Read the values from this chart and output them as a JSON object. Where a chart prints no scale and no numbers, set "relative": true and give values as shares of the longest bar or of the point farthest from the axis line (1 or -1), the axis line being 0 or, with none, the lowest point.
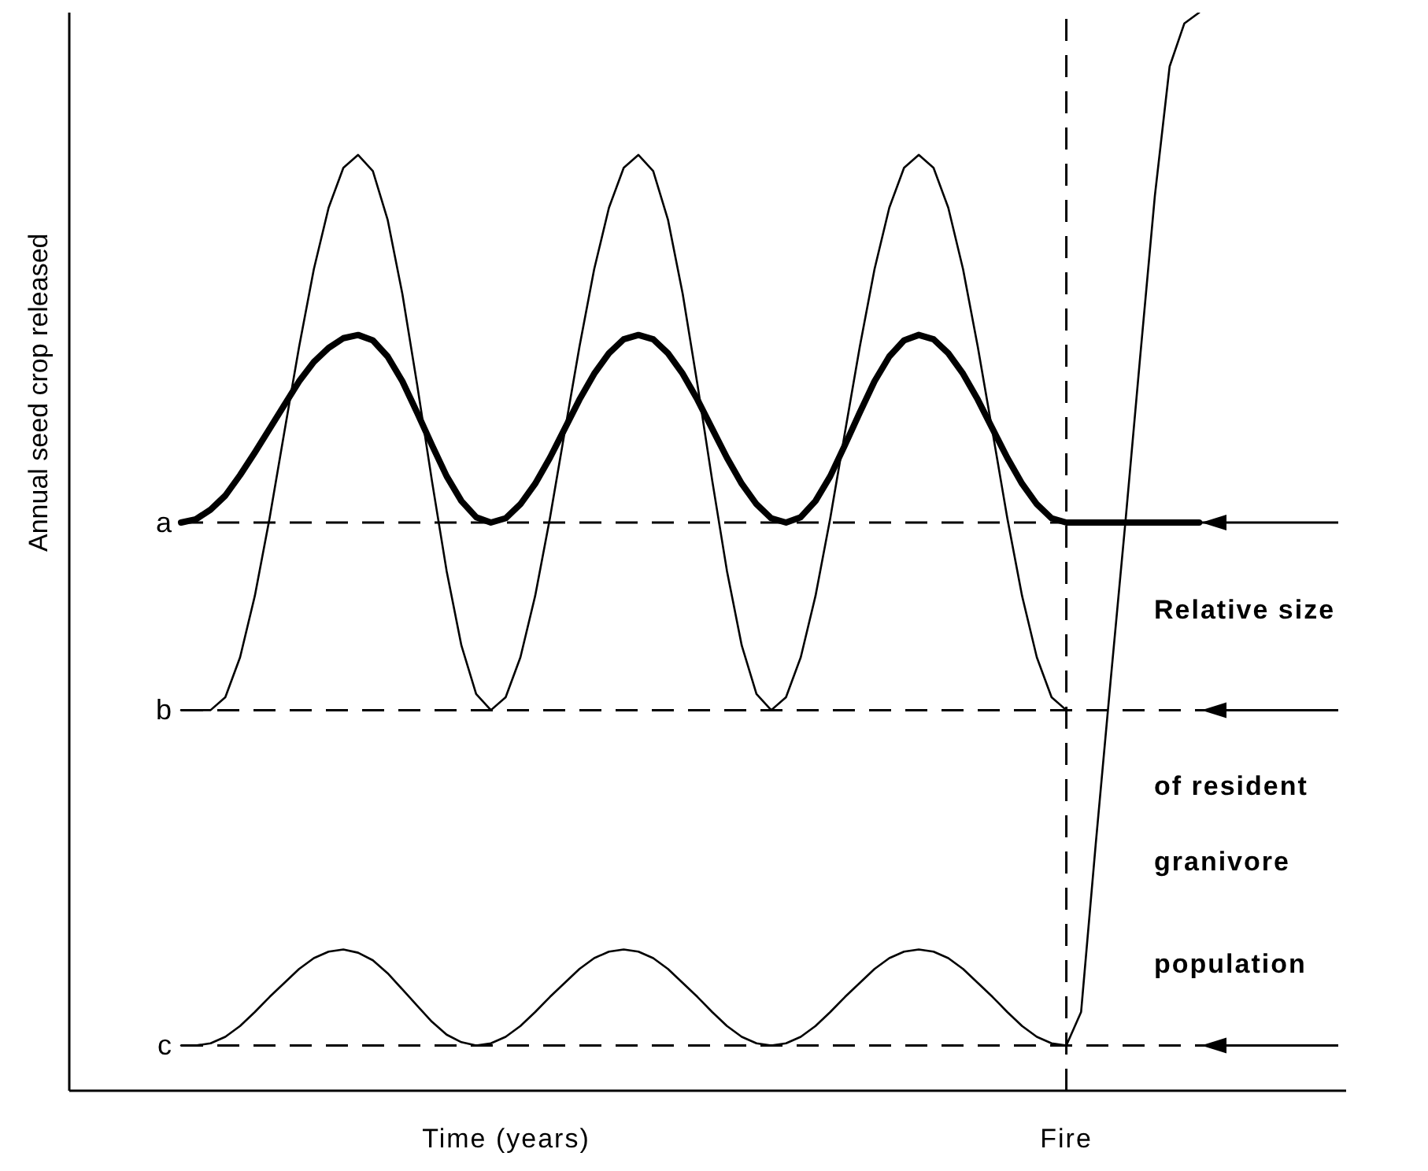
{
  "chart_data": {
    "type": "line",
    "relative": true,
    "ylabel": "Annual seed crop released",
    "xlabel": "Time (years)",
    "categories": [
      null,
      null,
      null,
      null,
      null,
      null,
      null,
      null,
      null,
      null,
      null,
      null,
      null,
      null,
      null,
      null,
      null,
      null,
      null,
      null,
      null,
      null,
      null,
      null,
      null,
      null,
      null,
      null,
      null,
      null,
      null,
      null,
      null,
      null,
      null,
      null,
      null,
      null,
      null,
      null,
      null,
      null,
      null,
      null,
      null,
      null,
      null,
      null,
      null,
      null,
      null,
      null,
      null,
      null,
      null,
      null,
      null,
      null,
      null,
      null,
      null,
      null,
      null,
      null,
      null,
      null,
      null,
      null,
      null,
      null,
      null
    ],
    "marker": "none",
    "line_style": "solid",
    "series": [
      {
        "color": "#000000",
        "values": [
          0.527,
          0.53,
          0.539,
          0.552,
          0.571,
          0.592,
          0.614,
          0.636,
          0.658,
          0.676,
          0.689,
          0.698,
          0.701,
          0.696,
          0.681,
          0.658,
          0.629,
          0.599,
          0.57,
          0.547,
          0.532,
          0.527,
          0.531,
          0.544,
          0.563,
          0.587,
          0.614,
          0.641,
          0.665,
          0.684,
          0.697,
          0.701,
          0.697,
          0.684,
          0.665,
          0.641,
          0.614,
          0.587,
          0.563,
          0.544,
          0.531,
          0.527,
          0.532,
          0.547,
          0.57,
          0.599,
          0.629,
          0.658,
          0.681,
          0.696,
          0.701,
          0.697,
          0.684,
          0.665,
          0.641,
          0.614,
          0.587,
          0.563,
          0.544,
          0.531,
          0.527,
          0.527,
          0.527,
          0.527,
          0.527,
          0.527,
          0.527,
          0.527,
          0.527,
          0.527,
          null
        ]
      },
      {
        "color": "#000000",
        "values": [
          0.353,
          0.353,
          0.353,
          0.365,
          0.402,
          0.459,
          0.531,
          0.611,
          0.69,
          0.762,
          0.819,
          0.856,
          0.868,
          0.853,
          0.808,
          0.739,
          0.655,
          0.566,
          0.482,
          0.413,
          0.368,
          0.353,
          0.365,
          0.402,
          0.459,
          0.531,
          0.611,
          0.69,
          0.762,
          0.819,
          0.856,
          0.868,
          0.853,
          0.808,
          0.739,
          0.655,
          0.566,
          0.482,
          0.413,
          0.368,
          0.353,
          0.365,
          0.402,
          0.459,
          0.531,
          0.611,
          0.69,
          0.762,
          0.819,
          0.856,
          0.868,
          0.856,
          0.819,
          0.762,
          0.69,
          0.611,
          0.531,
          0.459,
          0.402,
          0.365,
          0.353,
          null,
          null,
          null,
          null,
          null,
          null,
          null,
          null,
          null,
          null
        ]
      },
      {
        "color": "#000000",
        "values": [
          0.042,
          0.042,
          0.044,
          0.05,
          0.06,
          0.073,
          0.087,
          0.1,
          0.113,
          0.123,
          0.129,
          0.131,
          0.128,
          0.121,
          0.109,
          0.094,
          0.079,
          0.064,
          0.052,
          0.045,
          0.042,
          0.044,
          0.05,
          0.06,
          0.073,
          0.087,
          0.1,
          0.113,
          0.123,
          0.129,
          0.131,
          0.129,
          0.123,
          0.113,
          0.1,
          0.087,
          0.073,
          0.06,
          0.05,
          0.044,
          0.042,
          0.044,
          0.05,
          0.06,
          0.073,
          0.087,
          0.1,
          0.113,
          0.123,
          0.129,
          0.131,
          0.129,
          0.123,
          0.113,
          0.1,
          0.087,
          0.073,
          0.06,
          0.05,
          0.044,
          0.042,
          0.073,
          0.23,
          0.38,
          0.527,
          0.68,
          0.83,
          0.95,
          0.99,
          1.0,
          null
        ]
      }
    ],
    "ref_lines": [
      {
        "axis": "y",
        "value": 0.527,
        "label": "a",
        "line_style": "dashed"
      },
      {
        "axis": "y",
        "value": 0.353,
        "label": "b",
        "line_style": "dashed"
      },
      {
        "axis": "y",
        "value": 0.042,
        "label": "c",
        "line_style": "dashed"
      }
    ],
    "annotations": [
      "Relative size",
      "of resident",
      "granivore",
      "population",
      {
        "text": "Fire"
      }
    ]
  }
}
